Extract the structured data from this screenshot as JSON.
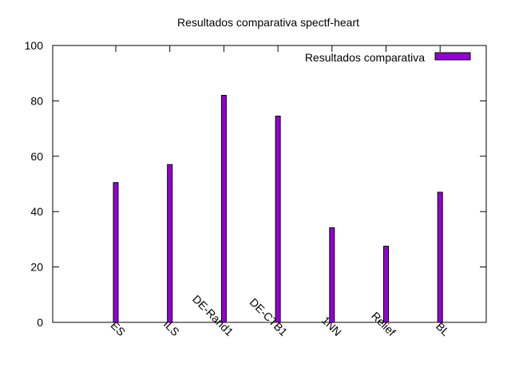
{
  "chart_data": {
    "type": "bar",
    "title": "Resultados comparativa spectf-heart",
    "categories": [
      "ES",
      "ILS",
      "DE-Rand1",
      "DE-CTB1",
      "1NN",
      "Relief",
      "BL"
    ],
    "series": [
      {
        "name": "Resultados comparativa",
        "values": [
          50.5,
          57,
          82,
          74.5,
          34.2,
          27.5,
          47
        ]
      }
    ],
    "ylim": [
      0,
      100
    ],
    "yticks": [
      0,
      20,
      40,
      60,
      80,
      100
    ],
    "xlabel": "",
    "ylabel": "",
    "grid": false,
    "legend": "top-right",
    "bar_color": "#9400d3",
    "bar_outline": "#000000"
  }
}
